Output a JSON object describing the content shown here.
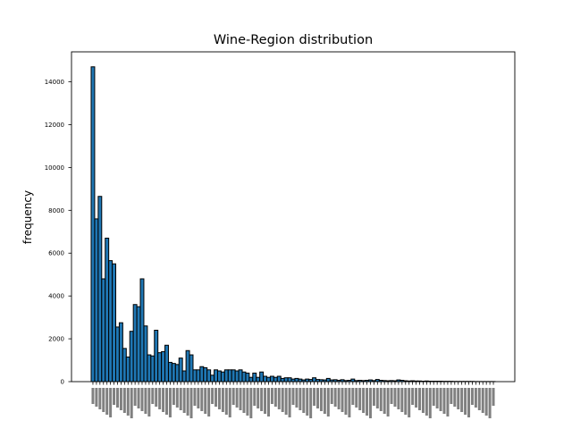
{
  "chart_data": {
    "type": "bar",
    "title": "Wine-Region distribution",
    "xlabel": "",
    "ylabel": "frequency",
    "ylim": [
      0,
      15400
    ],
    "yticks": [
      0,
      2000,
      4000,
      6000,
      8000,
      10000,
      12000,
      14000
    ],
    "ytick_labels": [
      "0",
      "2000",
      "4000",
      "6000",
      "8000",
      "10000",
      "12000",
      "14000"
    ],
    "xtick_labels_legible": false,
    "bar_color": "#1f77b4",
    "edge_color": "#000000",
    "grid": false,
    "legend": "none",
    "values": [
      14700,
      7600,
      8650,
      4800,
      6700,
      5650,
      5500,
      2550,
      2750,
      1550,
      1150,
      2350,
      3600,
      3500,
      4800,
      2600,
      1250,
      1200,
      2400,
      1350,
      1400,
      1700,
      900,
      850,
      800,
      1100,
      500,
      1450,
      1250,
      550,
      550,
      700,
      650,
      550,
      300,
      550,
      500,
      450,
      550,
      550,
      550,
      500,
      550,
      450,
      400,
      200,
      400,
      200,
      450,
      250,
      200,
      250,
      200,
      250,
      150,
      180,
      180,
      120,
      150,
      120,
      80,
      120,
      100,
      180,
      100,
      90,
      80,
      150,
      80,
      90,
      60,
      90,
      50,
      60,
      120,
      50,
      60,
      50,
      60,
      80,
      50,
      100,
      60,
      50,
      40,
      50,
      40,
      80,
      60,
      40,
      30,
      40,
      30,
      30,
      20,
      30,
      20,
      20,
      20,
      20,
      15,
      15,
      15,
      10,
      10,
      10,
      10,
      10,
      10,
      5,
      5,
      5,
      5,
      5,
      5
    ]
  }
}
